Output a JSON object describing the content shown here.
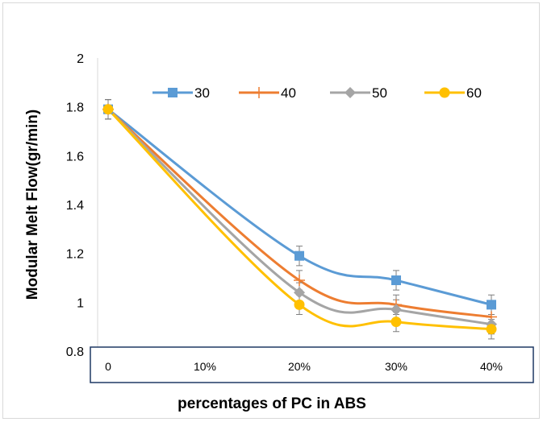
{
  "chart_data": {
    "type": "line",
    "title": "",
    "xlabel": "percentages of PC in ABS",
    "ylabel": "Modular Melt Flow(gr/min)",
    "categories": [
      "0",
      "10%",
      "20%",
      "30%",
      "40%"
    ],
    "ylim": [
      0.8,
      2
    ],
    "yticks": [
      "0.8",
      "1",
      "1.2",
      "1.4",
      "1.6",
      "1.8",
      "2"
    ],
    "grid": false,
    "legend_position": "top-right",
    "error_bar": 0.04,
    "series": [
      {
        "name": "30",
        "color": "#5b9bd5",
        "marker": "square",
        "x": [
          0,
          2,
          3,
          4
        ],
        "values": [
          1.79,
          1.19,
          1.09,
          0.99
        ]
      },
      {
        "name": "40",
        "color": "#ed7d31",
        "marker": "plus",
        "x": [
          0,
          2,
          3,
          4
        ],
        "values": [
          1.79,
          1.09,
          0.99,
          0.94
        ]
      },
      {
        "name": "50",
        "color": "#a5a5a5",
        "marker": "diamond",
        "x": [
          0,
          2,
          3,
          4
        ],
        "values": [
          1.79,
          1.04,
          0.97,
          0.91
        ]
      },
      {
        "name": "60",
        "color": "#ffc000",
        "marker": "circle",
        "x": [
          0,
          2,
          3,
          4
        ],
        "values": [
          1.79,
          0.99,
          0.92,
          0.89
        ]
      }
    ]
  }
}
